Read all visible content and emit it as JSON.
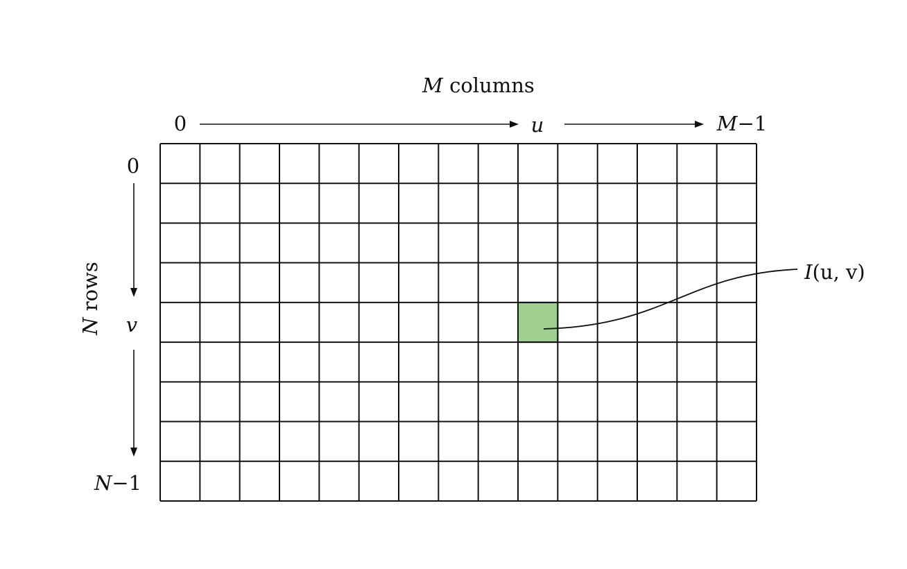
{
  "diagram": {
    "columns_label": {
      "var": "M",
      "word": "columns"
    },
    "rows_label": {
      "var": "N",
      "word": "rows"
    },
    "col_start": "0",
    "col_index": "u",
    "col_end": {
      "var": "M",
      "suffix": "−1"
    },
    "row_start": "0",
    "row_index": "v",
    "row_end": {
      "var": "N",
      "suffix": "−1"
    },
    "pixel_label": {
      "fn": "I",
      "args": "(u, v)"
    },
    "grid": {
      "columns": 15,
      "rows": 9,
      "highlight_col": 9,
      "highlight_row": 4
    },
    "colors": {
      "highlight": "#9ecf8f",
      "line": "#111111"
    }
  }
}
